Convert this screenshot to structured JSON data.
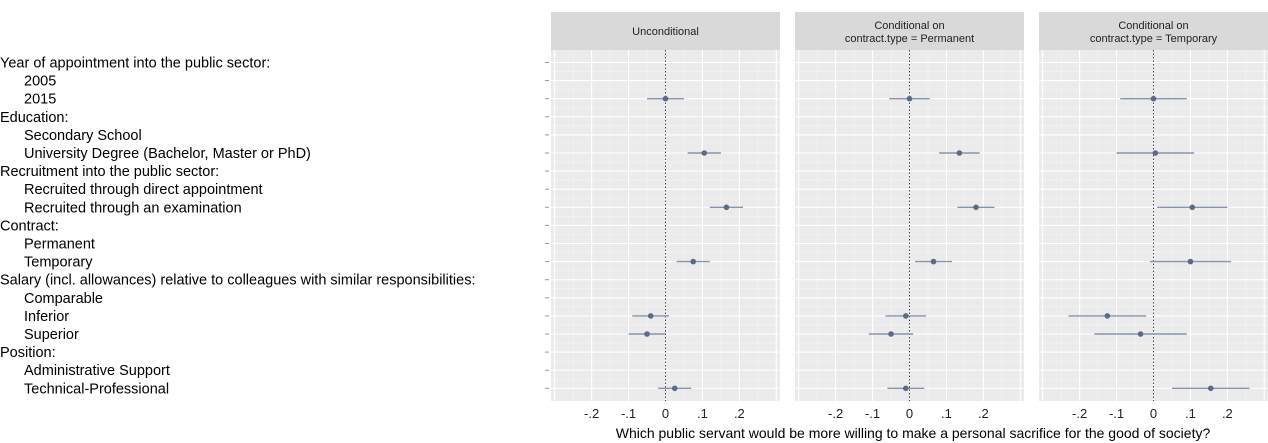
{
  "chart_data": {
    "type": "scatter",
    "title": "",
    "xlabel": "Which public servant would be more willing to make a personal sacrifice for the good of society?",
    "ylabel": "",
    "xlim": [
      -0.31,
      0.31
    ],
    "x_ticks": [
      -0.2,
      -0.1,
      0,
      0.1,
      0.2
    ],
    "x_tick_labels": [
      "-.2",
      "-.1",
      "0",
      ".1",
      ".2"
    ],
    "grid": true,
    "reference_line": 0,
    "rows": [
      {
        "label": "Year of appointment into the public sector:",
        "header": true
      },
      {
        "label": "2005",
        "header": false
      },
      {
        "label": "2015",
        "header": false
      },
      {
        "label": "Education:",
        "header": true
      },
      {
        "label": "Secondary School",
        "header": false
      },
      {
        "label": "University Degree (Bachelor, Master or PhD)",
        "header": false
      },
      {
        "label": "Recruitment into the public sector:",
        "header": true
      },
      {
        "label": "Recruited through direct appointment",
        "header": false
      },
      {
        "label": "Recruited through an examination",
        "header": false
      },
      {
        "label": "Contract:",
        "header": true
      },
      {
        "label": "Permanent",
        "header": false
      },
      {
        "label": "Temporary",
        "header": false
      },
      {
        "label": "Salary (incl. allowances) relative to colleagues with similar responsibilities:",
        "header": true
      },
      {
        "label": "Comparable",
        "header": false
      },
      {
        "label": "Inferior",
        "header": false
      },
      {
        "label": "Superior",
        "header": false
      },
      {
        "label": "Position:",
        "header": true
      },
      {
        "label": "Administrative Support",
        "header": false
      },
      {
        "label": "Technical-Professional",
        "header": false
      }
    ],
    "panels": [
      {
        "strip": [
          "Unconditional"
        ],
        "points": [
          {
            "row": 2,
            "x": 0.0,
            "lo": -0.05,
            "hi": 0.05
          },
          {
            "row": 5,
            "x": 0.105,
            "lo": 0.06,
            "hi": 0.15
          },
          {
            "row": 8,
            "x": 0.165,
            "lo": 0.12,
            "hi": 0.21
          },
          {
            "row": 11,
            "x": 0.075,
            "lo": 0.03,
            "hi": 0.12
          },
          {
            "row": 14,
            "x": -0.04,
            "lo": -0.09,
            "hi": 0.01
          },
          {
            "row": 15,
            "x": -0.05,
            "lo": -0.1,
            "hi": 0.0
          },
          {
            "row": 18,
            "x": 0.025,
            "lo": -0.02,
            "hi": 0.07
          }
        ]
      },
      {
        "strip": [
          "Conditional on",
          "contract.type = Permanent"
        ],
        "points": [
          {
            "row": 2,
            "x": 0.0,
            "lo": -0.055,
            "hi": 0.055
          },
          {
            "row": 5,
            "x": 0.135,
            "lo": 0.08,
            "hi": 0.19
          },
          {
            "row": 8,
            "x": 0.18,
            "lo": 0.13,
            "hi": 0.23
          },
          {
            "row": 11,
            "x": 0.065,
            "lo": 0.015,
            "hi": 0.115
          },
          {
            "row": 14,
            "x": -0.01,
            "lo": -0.065,
            "hi": 0.045
          },
          {
            "row": 15,
            "x": -0.05,
            "lo": -0.11,
            "hi": 0.01
          },
          {
            "row": 18,
            "x": -0.01,
            "lo": -0.06,
            "hi": 0.04
          }
        ]
      },
      {
        "strip": [
          "Conditional on",
          "contract.type = Temporary"
        ],
        "points": [
          {
            "row": 2,
            "x": 0.0,
            "lo": -0.09,
            "hi": 0.09
          },
          {
            "row": 5,
            "x": 0.005,
            "lo": -0.1,
            "hi": 0.11
          },
          {
            "row": 8,
            "x": 0.105,
            "lo": 0.01,
            "hi": 0.2
          },
          {
            "row": 11,
            "x": 0.1,
            "lo": -0.01,
            "hi": 0.21
          },
          {
            "row": 14,
            "x": -0.125,
            "lo": -0.23,
            "hi": -0.02
          },
          {
            "row": 15,
            "x": -0.035,
            "lo": -0.16,
            "hi": 0.09
          },
          {
            "row": 18,
            "x": 0.155,
            "lo": 0.05,
            "hi": 0.26
          }
        ]
      }
    ]
  },
  "colors": {
    "panel_bg": "#ebebeb",
    "strip_bg": "#d9d9d9",
    "grid_major": "#ffffff",
    "grid_minor": "#f4f4f4",
    "point": "#5b6b85",
    "ci_line": "#8896ad"
  }
}
